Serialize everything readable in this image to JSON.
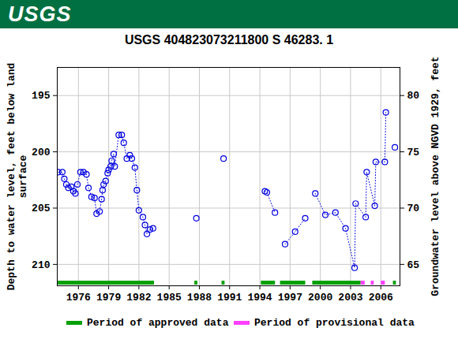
{
  "header": {
    "logo": "USGS"
  },
  "chart_data": {
    "type": "scatter",
    "title": "USGS 404823073211800 S 46283. 1",
    "y_label": "Depth to water level, feet below land surface",
    "y2_label": "Groundwater level above NGVD 1929, feet",
    "color": "#0000e0",
    "marker": "open_circle",
    "line_style": "dotted",
    "grid": true,
    "xlim": [
      1973.9,
      2007.9
    ],
    "xticks": [
      1976,
      1979,
      1982,
      1985,
      1988,
      1991,
      1994,
      1997,
      2000,
      2003,
      2006
    ],
    "ylim": [
      211.9,
      192.5
    ],
    "yticks": [
      195,
      200,
      205,
      210
    ],
    "y2lim": [
      63.1,
      82.5
    ],
    "y2ticks": [
      80,
      75,
      70,
      65
    ],
    "x": [
      1974.0,
      1974.4,
      1974.6,
      1974.8,
      1975.0,
      1975.3,
      1975.5,
      1975.7,
      1975.9,
      1976.2,
      1976.5,
      1976.8,
      1977.0,
      1977.3,
      1977.6,
      1977.8,
      1978.1,
      1978.3,
      1978.4,
      1978.5,
      1978.7,
      1978.9,
      1979.0,
      1979.2,
      1979.3,
      1979.5,
      1979.6,
      1980.0,
      1980.3,
      1980.5,
      1980.8,
      1981.1,
      1981.3,
      1981.6,
      1981.8,
      1982.0,
      1982.4,
      1982.6,
      1982.8,
      1983.1,
      1983.4,
      1985.5,
      1987.7,
      1989.0,
      1990.4,
      1992.5,
      1994.5,
      1994.7,
      1995.5,
      1996.0,
      1996.5,
      1997.5,
      1998.5,
      1999.0,
      1999.5,
      2000.5,
      2001.5,
      2002.5,
      2003.4,
      2003.5,
      2004.5,
      2004.6,
      2005.4,
      2005.5,
      2006.4,
      2006.5,
      2007.0,
      2007.4
    ],
    "values": [
      201.8,
      201.8,
      202.4,
      202.9,
      203.2,
      203.1,
      203.5,
      203.7,
      202.9,
      201.8,
      201.8,
      202.0,
      203.2,
      204.0,
      204.1,
      205.5,
      205.3,
      204.2,
      203.4,
      202.9,
      202.6,
      201.9,
      201.6,
      201.3,
      200.8,
      200.2,
      201.3,
      198.5,
      198.5,
      199.2,
      200.6,
      200.3,
      200.6,
      201.4,
      203.4,
      205.2,
      205.8,
      206.5,
      207.3,
      206.9,
      206.8,
      null,
      205.9,
      null,
      200.6,
      null,
      203.5,
      203.6,
      205.4,
      null,
      208.2,
      207.1,
      205.9,
      null,
      203.7,
      205.6,
      205.4,
      206.8,
      210.3,
      204.6,
      205.8,
      201.8,
      204.8,
      200.9,
      200.9,
      196.5,
      null,
      199.6
    ],
    "periods": [
      {
        "name": "Period of approved data",
        "color": "#00a000",
        "ranges": [
          [
            1973.95,
            1983.5
          ],
          [
            1987.5,
            1987.8
          ],
          [
            1990.2,
            1990.5
          ],
          [
            1994.1,
            1995.5
          ],
          [
            1996.0,
            1998.5
          ],
          [
            1999.2,
            2004.0
          ],
          [
            2007.2,
            2007.5
          ]
        ]
      },
      {
        "name": "Period of provisional data",
        "color": "#ff40ff",
        "ranges": [
          [
            2004.0,
            2004.4
          ],
          [
            2005.0,
            2005.3
          ],
          [
            2006.0,
            2006.4
          ]
        ]
      }
    ]
  }
}
